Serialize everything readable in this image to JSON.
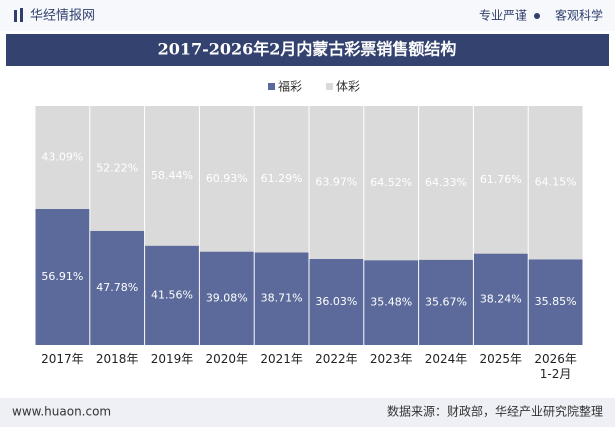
{
  "header": {
    "logo": "华经情报网",
    "slogan_left": "专业严谨",
    "slogan_right": "客观科学"
  },
  "chart_data": {
    "type": "stacked-bar",
    "title": "2017-2026年2月内蒙古彩票销售额结构",
    "categories": [
      "2017年",
      "2018年",
      "2019年",
      "2020年",
      "2021年",
      "2022年",
      "2023年",
      "2024年",
      "2025年",
      "2026年\n1-2月"
    ],
    "series": [
      {
        "name": "福彩",
        "color": "#5b6a9a",
        "values": [
          56.91,
          47.78,
          41.56,
          39.08,
          38.71,
          36.03,
          35.48,
          35.67,
          38.24,
          35.85
        ],
        "value_labels": [
          "56.91%",
          "47.78%",
          "41.56%",
          "39.08%",
          "38.71%",
          "36.03%",
          "35.48%",
          "35.67%",
          "38.24%",
          "35.85%"
        ]
      },
      {
        "name": "体彩",
        "color": "#dadada",
        "values": [
          43.09,
          52.22,
          58.44,
          60.93,
          61.29,
          63.97,
          64.52,
          64.33,
          61.76,
          64.15
        ],
        "value_labels": [
          "43.09%",
          "52.22%",
          "58.44%",
          "60.93%",
          "61.29%",
          "63.97%",
          "64.52%",
          "64.33%",
          "61.76%",
          "64.15%"
        ]
      }
    ]
  },
  "footer": {
    "website": "www.huaon.com",
    "source": "数据来源：财政部，华经产业研究院整理"
  }
}
